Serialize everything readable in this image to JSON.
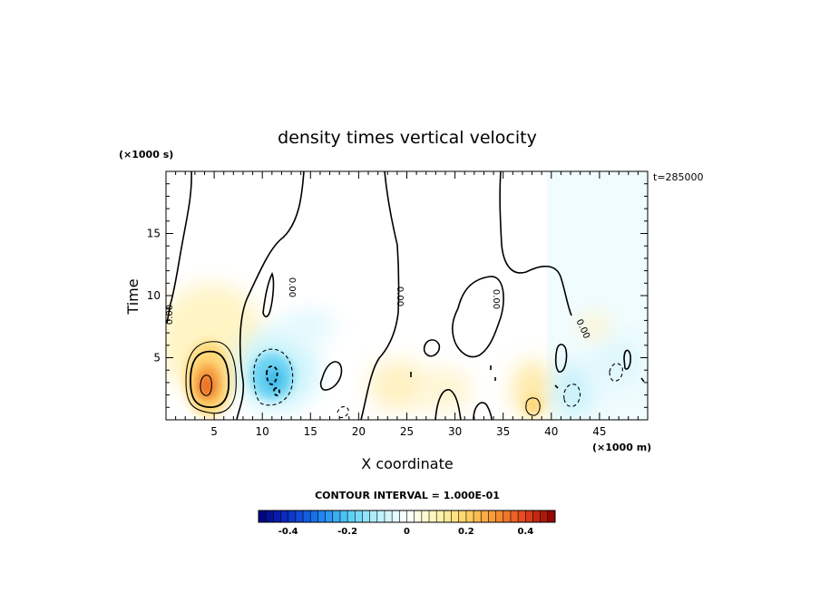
{
  "chart_data": {
    "type": "heatmap",
    "title": "density times vertical velocity",
    "xlabel": "X coordinate",
    "ylabel": "Time",
    "x_units": "(×1000 m)",
    "y_units": "(×1000 s)",
    "time_stamp": "t=285000",
    "xlim": [
      0,
      50
    ],
    "ylim": [
      0,
      20
    ],
    "x_ticks": [
      5,
      10,
      15,
      20,
      25,
      30,
      35,
      40,
      45
    ],
    "y_ticks": [
      5,
      10,
      15
    ],
    "contour_interval_label": "CONTOUR INTERVAL = 1.000E-01",
    "contour_labels": [
      "0.00",
      "0.00",
      "0.00",
      "0.00",
      "0.00"
    ],
    "colorbar": {
      "min": -0.5,
      "max": 0.5,
      "ticks": [
        -0.4,
        -0.2,
        0,
        0.2,
        0.4
      ],
      "tick_labels": [
        "-0.4",
        "-0.2",
        "0",
        "0.2",
        "0.4"
      ],
      "colors": [
        "#00007a",
        "#0b2fc8",
        "#1a7af0",
        "#52cbf5",
        "#b8f1fb",
        "#ffffff",
        "#fff6b5",
        "#ffd466",
        "#f79431",
        "#e5421d",
        "#8a0000"
      ]
    },
    "features": [
      {
        "name": "positive maximum",
        "x": 4.2,
        "y": 2.6,
        "value": 0.35
      },
      {
        "name": "negative cell",
        "x": 11.2,
        "y": 3.2,
        "value": -0.18
      },
      {
        "name": "weak positive",
        "x": 25.0,
        "y": 2.5,
        "value": 0.06
      },
      {
        "name": "weak positive",
        "x": 38.0,
        "y": 1.2,
        "value": 0.1
      },
      {
        "name": "weak negative",
        "x": 42.5,
        "y": 2.0,
        "value": -0.08
      },
      {
        "name": "weak negative",
        "x": 46.5,
        "y": 3.0,
        "value": -0.06
      }
    ]
  }
}
